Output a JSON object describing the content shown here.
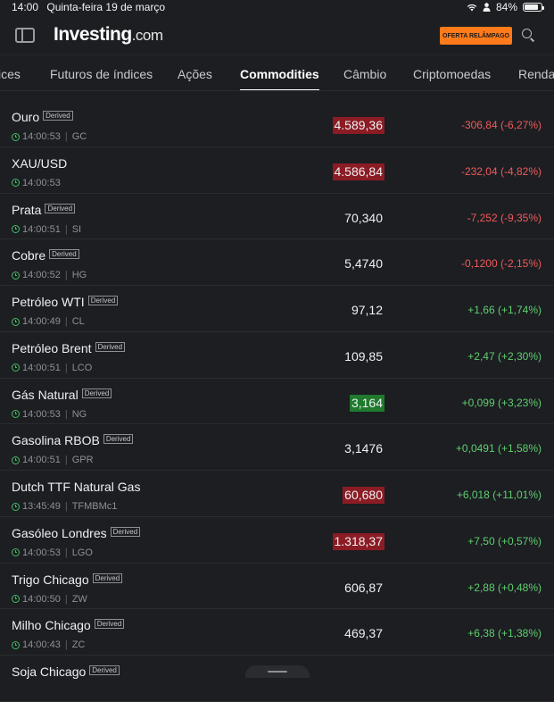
{
  "status_bar": {
    "time": "14:00",
    "date": "Quinta-feira 19 de março",
    "battery": "84%",
    "battery_level": 0.84
  },
  "header": {
    "logo_main": "Investing",
    "logo_suffix": ".com",
    "promo_label": "OFERTA RELÂMPAGO"
  },
  "tabs": [
    "ices",
    "Futuros de índices",
    "Ações",
    "Commodities",
    "Câmbio",
    "Criptomoedas",
    "Renda"
  ],
  "active_tab": "Commodities",
  "colors": {
    "negative": "#ef5a5a",
    "positive": "#5fce6e",
    "highlight_down": "#8b1c24",
    "highlight_up": "#1f7a2e"
  },
  "rows": [
    {
      "name": "Ouro",
      "badge": "Derived",
      "time": "14:00:53",
      "symbol": "GC",
      "price": "4.589,36",
      "price_flash": "down",
      "change": "-306,84 (-6,27%)",
      "direction": "neg"
    },
    {
      "name": "XAU/USD",
      "badge": "",
      "time": "14:00:53",
      "symbol": "",
      "price": "4.586,84",
      "price_flash": "down",
      "change": "-232,04 (-4,82%)",
      "direction": "neg"
    },
    {
      "name": "Prata",
      "badge": "Derived",
      "time": "14:00:51",
      "symbol": "SI",
      "price": "70,340",
      "price_flash": "",
      "change": "-7,252 (-9,35%)",
      "direction": "neg"
    },
    {
      "name": "Cobre",
      "badge": "Derived",
      "time": "14:00:52",
      "symbol": "HG",
      "price": "5,4740",
      "price_flash": "",
      "change": "-0,1200 (-2,15%)",
      "direction": "neg"
    },
    {
      "name": "Petróleo WTI",
      "badge": "Derived",
      "time": "14:00:49",
      "symbol": "CL",
      "price": "97,12",
      "price_flash": "",
      "change": "+1,66 (+1,74%)",
      "direction": "pos"
    },
    {
      "name": "Petróleo Brent",
      "badge": "Derived",
      "time": "14:00:51",
      "symbol": "LCO",
      "price": "109,85",
      "price_flash": "",
      "change": "+2,47 (+2,30%)",
      "direction": "pos"
    },
    {
      "name": "Gás Natural",
      "badge": "Derived",
      "time": "14:00:53",
      "symbol": "NG",
      "price": "3,164",
      "price_flash": "up",
      "change": "+0,099 (+3,23%)",
      "direction": "pos"
    },
    {
      "name": "Gasolina RBOB",
      "badge": "Derived",
      "time": "14:00:51",
      "symbol": "GPR",
      "price": "3,1476",
      "price_flash": "",
      "change": "+0,0491 (+1,58%)",
      "direction": "pos"
    },
    {
      "name": "Dutch TTF Natural Gas",
      "badge": "",
      "time": "13:45:49",
      "symbol": "TFMBMc1",
      "price": "60,680",
      "price_flash": "down",
      "change": "+6,018 (+11,01%)",
      "direction": "pos"
    },
    {
      "name": "Gasóleo Londres",
      "badge": "Derived",
      "time": "14:00:53",
      "symbol": "LGO",
      "price": "1.318,37",
      "price_flash": "down",
      "change": "+7,50 (+0,57%)",
      "direction": "pos"
    },
    {
      "name": "Trigo Chicago",
      "badge": "Derived",
      "time": "14:00:50",
      "symbol": "ZW",
      "price": "606,87",
      "price_flash": "",
      "change": "+2,88 (+0,48%)",
      "direction": "pos"
    },
    {
      "name": "Milho Chicago",
      "badge": "Derived",
      "time": "14:00:43",
      "symbol": "ZC",
      "price": "469,37",
      "price_flash": "",
      "change": "+6,38 (+1,38%)",
      "direction": "pos"
    },
    {
      "name": "Soja Chicago",
      "badge": "Derived",
      "time": "",
      "symbol": "",
      "price": "",
      "price_flash": "",
      "change": "",
      "direction": "pos"
    }
  ]
}
